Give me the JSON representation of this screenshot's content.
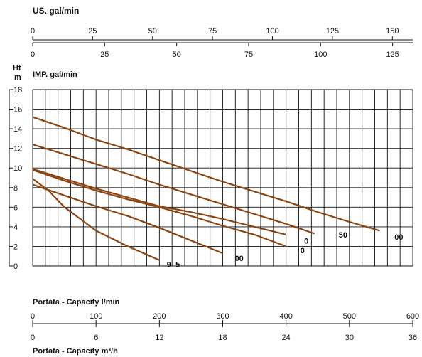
{
  "chart_data": {
    "type": "line",
    "title": "",
    "top_axes": [
      {
        "label": "US. gal/min",
        "ticks": [
          0,
          25,
          50,
          75,
          100,
          125,
          150
        ],
        "range": [
          0,
          158.5
        ]
      },
      {
        "label": "",
        "ticks": [
          0,
          25,
          50,
          75,
          100,
          125
        ],
        "range": [
          0,
          132
        ]
      }
    ],
    "y_axis": {
      "label_top": "Ht",
      "label_bottom": "m",
      "extra_label": "IMP. gal/min",
      "ticks": [
        0,
        2,
        4,
        6,
        8,
        10,
        12,
        14,
        16,
        18
      ],
      "range": [
        0,
        18
      ]
    },
    "x_axis": {
      "label": "Portata - Capacity l/min",
      "ticks": [
        0,
        100,
        200,
        300,
        400,
        500,
        600
      ],
      "range": [
        0,
        600
      ]
    },
    "x_axis_secondary": {
      "label": "Portata - Capacity m³/h",
      "ticks": [
        0,
        6,
        12,
        18,
        24,
        30,
        36
      ],
      "range": [
        0,
        36
      ]
    },
    "grid": true,
    "curve_color": "#8b4513",
    "series": [
      {
        "values": [
          [
            0,
            15.2
          ],
          [
            50,
            14.1
          ],
          [
            100,
            12.9
          ],
          [
            150,
            11.9
          ],
          [
            200,
            10.8
          ],
          [
            250,
            9.7
          ],
          [
            300,
            8.6
          ],
          [
            350,
            7.6
          ],
          [
            400,
            6.6
          ],
          [
            450,
            5.5
          ],
          [
            500,
            4.5
          ],
          [
            548,
            3.6
          ]
        ]
      },
      {
        "values": [
          [
            0,
            12.4
          ],
          [
            50,
            11.4
          ],
          [
            100,
            10.4
          ],
          [
            150,
            9.4
          ],
          [
            200,
            8.3
          ],
          [
            250,
            7.3
          ],
          [
            300,
            6.3
          ],
          [
            350,
            5.3
          ],
          [
            400,
            4.3
          ],
          [
            445,
            3.3
          ]
        ]
      },
      {
        "values": [
          [
            0,
            9.9
          ],
          [
            50,
            8.9
          ],
          [
            100,
            7.9
          ],
          [
            150,
            7.0
          ],
          [
            200,
            6.1
          ],
          [
            250,
            5.5
          ],
          [
            300,
            4.8
          ],
          [
            350,
            4.0
          ],
          [
            400,
            3.2
          ]
        ]
      },
      {
        "values": [
          [
            0,
            9.8
          ],
          [
            50,
            8.7
          ],
          [
            100,
            7.7
          ],
          [
            150,
            6.8
          ],
          [
            200,
            6.0
          ],
          [
            250,
            5.1
          ],
          [
            300,
            4.1
          ],
          [
            350,
            3.2
          ],
          [
            400,
            2.0
          ]
        ]
      },
      {
        "values": [
          [
            0,
            8.3
          ],
          [
            50,
            7.2
          ],
          [
            100,
            6.1
          ],
          [
            150,
            5.1
          ],
          [
            200,
            3.9
          ],
          [
            250,
            2.6
          ],
          [
            300,
            1.3
          ]
        ]
      },
      {
        "values": [
          [
            0,
            8.9
          ],
          [
            25,
            7.7
          ],
          [
            50,
            6.0
          ],
          [
            100,
            3.6
          ],
          [
            150,
            2.0
          ],
          [
            200,
            0.6
          ]
        ]
      }
    ],
    "annotations": [
      {
        "text": "00",
        "x": 578,
        "y": 2.7
      },
      {
        "text": "50",
        "x": 490,
        "y": 2.9
      },
      {
        "text": "0",
        "x": 432,
        "y": 2.3
      },
      {
        "text": "0",
        "x": 426,
        "y": 1.3
      },
      {
        "text": "00",
        "x": 326,
        "y": 0.5
      },
      {
        "text": "9",
        "x": 215,
        "y": -0.1
      },
      {
        "text": "5",
        "x": 229,
        "y": -0.1
      }
    ]
  }
}
